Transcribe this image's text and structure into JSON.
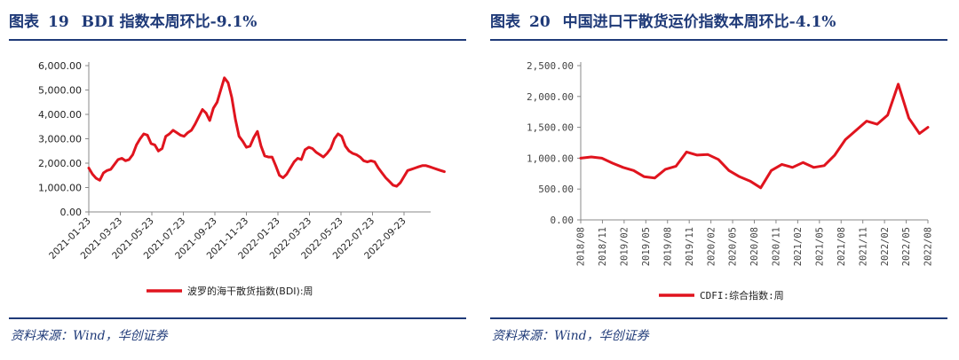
{
  "left": {
    "title_label": "图表",
    "title_number": "19",
    "title_text": "BDI 指数本周环比-9.1%",
    "source": "资料来源：Wind，华创证券"
  },
  "right": {
    "title_label": "图表",
    "title_number": "20",
    "title_text": "中国进口干散货运价指数本周环比-4.1%",
    "source": "资料来源：Wind，华创证券"
  },
  "chart_data": [
    {
      "type": "line",
      "title": "",
      "xlabel": "",
      "ylabel": "",
      "ylim": [
        0,
        6000
      ],
      "yticks": [
        "0.00",
        "1,000.00",
        "2,000.00",
        "3,000.00",
        "4,000.00",
        "5,000.00",
        "6,000.00"
      ],
      "xticks": [
        "2021-01-23",
        "2021-03-23",
        "2021-05-23",
        "2021-07-23",
        "2021-09-23",
        "2021-11-23",
        "2022-01-23",
        "2022-03-23",
        "2022-05-23",
        "2022-07-23",
        "2022-09-23"
      ],
      "grid": false,
      "legend": "bottom",
      "color": "#e0141e",
      "series": [
        {
          "name": "波罗的海干散货指数(BDI):周",
          "x": [
            0,
            1,
            2,
            3,
            4,
            5,
            6,
            7,
            8,
            9,
            10,
            11,
            12,
            13,
            14,
            15,
            16,
            17,
            18,
            19,
            20,
            21,
            22,
            23,
            24,
            25,
            26,
            27,
            28,
            29,
            30,
            31,
            32,
            33,
            34,
            35,
            36,
            37,
            38,
            39,
            40,
            41,
            42,
            43,
            44,
            45,
            46,
            47,
            48,
            49,
            50,
            51,
            52,
            53,
            54,
            55,
            56,
            57,
            58,
            59,
            60,
            61,
            62,
            63,
            64,
            65,
            66,
            67,
            68,
            69,
            70,
            71,
            72,
            73,
            74,
            75,
            76,
            77,
            78,
            79,
            80,
            81,
            82,
            83,
            84,
            85,
            86,
            87,
            88,
            89,
            90,
            91,
            92,
            93,
            94,
            95,
            96,
            97
          ],
          "values": [
            1800,
            1550,
            1380,
            1300,
            1600,
            1700,
            1750,
            1950,
            2150,
            2200,
            2100,
            2150,
            2350,
            2750,
            3000,
            3200,
            3150,
            2800,
            2750,
            2500,
            2600,
            3100,
            3200,
            3350,
            3250,
            3150,
            3100,
            3250,
            3350,
            3600,
            3900,
            4200,
            4050,
            3750,
            4250,
            4500,
            5000,
            5500,
            5300,
            4700,
            3800,
            3100,
            2900,
            2650,
            2700,
            3050,
            3300,
            2700,
            2300,
            2250,
            2250,
            1900,
            1500,
            1400,
            1550,
            1800,
            2050,
            2200,
            2150,
            2550,
            2650,
            2600,
            2450,
            2350,
            2250,
            2400,
            2600,
            3000,
            3200,
            3100,
            2700,
            2500,
            2400,
            2350,
            2250,
            2100,
            2050,
            2100,
            2050,
            1800,
            1600,
            1400,
            1250,
            1100,
            1050,
            1200,
            1450,
            1700,
            1750,
            1800,
            1850,
            1900,
            1900,
            1850,
            1800,
            1750,
            1700,
            1650
          ]
        }
      ]
    },
    {
      "type": "line",
      "title": "",
      "xlabel": "",
      "ylabel": "",
      "ylim": [
        0,
        2500
      ],
      "yticks": [
        "0.00",
        "500.00",
        "1,000.00",
        "1,500.00",
        "2,000.00",
        "2,500.00"
      ],
      "xticks": [
        "2018/08",
        "2018/11",
        "2019/02",
        "2019/05",
        "2019/08",
        "2019/11",
        "2020/02",
        "2020/05",
        "2020/08",
        "2020/11",
        "2021/02",
        "2021/05",
        "2021/08",
        "2021/11",
        "2022/02",
        "2022/05",
        "2022/08"
      ],
      "grid": false,
      "legend": "bottom",
      "color": "#e0141e",
      "series": [
        {
          "name": "CDFI:综合指数:周",
          "x": [
            0,
            0.5,
            1,
            1.5,
            2,
            2.5,
            3,
            3.5,
            4,
            4.5,
            5,
            5.5,
            6,
            6.5,
            7,
            7.5,
            8,
            8.5,
            9,
            9.5,
            10,
            10.5,
            11,
            11.5,
            12,
            12.5,
            13,
            13.5,
            14,
            14.5,
            15,
            15.5,
            16,
            16.4
          ],
          "values": [
            1000,
            1020,
            1000,
            920,
            850,
            800,
            700,
            680,
            820,
            870,
            1100,
            1050,
            1060,
            980,
            800,
            700,
            630,
            520,
            800,
            900,
            850,
            930,
            850,
            880,
            1050,
            1300,
            1450,
            1600,
            1550,
            1700,
            2200,
            1650,
            1400,
            1500
          ]
        }
      ]
    }
  ]
}
